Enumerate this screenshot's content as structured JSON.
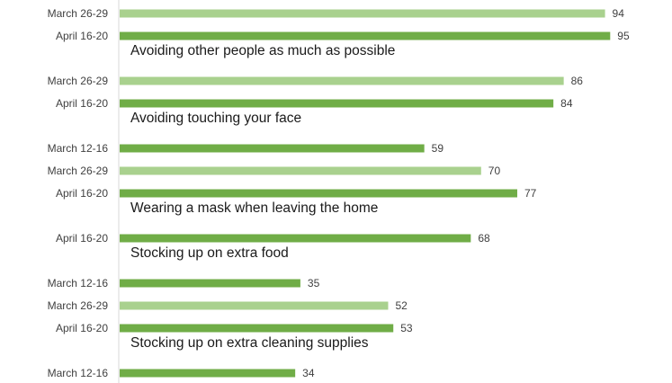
{
  "chart_data": {
    "type": "bar",
    "orientation": "horizontal",
    "title": "",
    "xlabel": "",
    "ylabel": "",
    "xlim": [
      0,
      100
    ],
    "grid": false,
    "legend": "none",
    "colors": {
      "March 12-16": "#70ad47",
      "March 26-29": "#a9d18e",
      "April 16-20": "#70ad47"
    },
    "groups": [
      {
        "title": "",
        "bars": [
          {
            "label": "March 26-29",
            "value": 94
          },
          {
            "label": "April 16-20",
            "value": 95
          }
        ]
      },
      {
        "title": "Avoiding other people as much as possible",
        "bars": [
          {
            "label": "March 26-29",
            "value": 86
          },
          {
            "label": "April 16-20",
            "value": 84
          }
        ]
      },
      {
        "title": "Avoiding touching your face",
        "bars": [
          {
            "label": "March 12-16",
            "value": 59
          },
          {
            "label": "March 26-29",
            "value": 70
          },
          {
            "label": "April 16-20",
            "value": 77
          }
        ]
      },
      {
        "title": "Wearing a mask when leaving the home",
        "bars": [
          {
            "label": "April 16-20",
            "value": 68
          }
        ]
      },
      {
        "title": "Stocking up on extra food",
        "bars": [
          {
            "label": "March 12-16",
            "value": 35
          },
          {
            "label": "March 26-29",
            "value": 52
          },
          {
            "label": "April 16-20",
            "value": 53
          }
        ]
      },
      {
        "title": "Stocking up on extra cleaning supplies",
        "bars": [
          {
            "label": "March 12-16",
            "value": 34
          }
        ]
      }
    ]
  }
}
